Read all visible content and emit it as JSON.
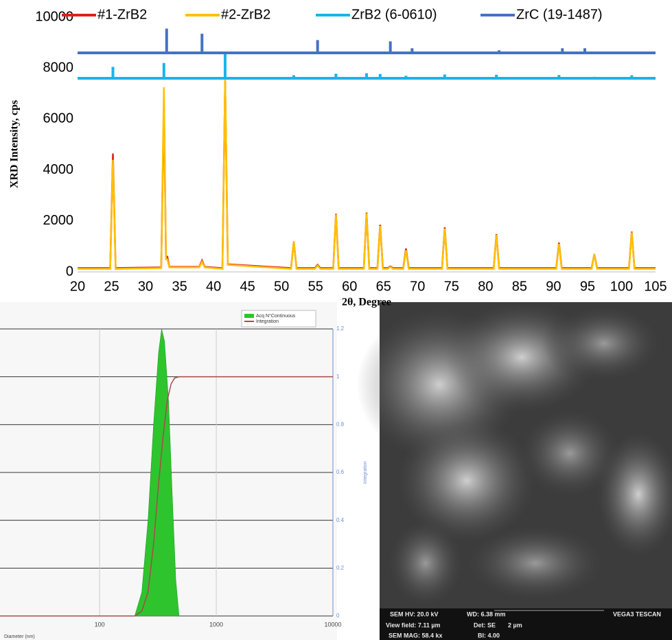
{
  "chart_data": [
    {
      "type": "line",
      "xlabel": "2θ, Degree",
      "ylabel": "XRD Intensity, cps",
      "xlim": [
        20,
        105
      ],
      "xticks": [
        20,
        25,
        30,
        35,
        40,
        45,
        50,
        55,
        60,
        65,
        70,
        75,
        80,
        85,
        90,
        95,
        100,
        105
      ],
      "ylim": [
        0,
        10000
      ],
      "yticks": [
        0,
        2000,
        4000,
        6000,
        8000,
        10000
      ],
      "grid": false,
      "series": [
        {
          "name": "#1-ZrB2",
          "color": "#e0201b",
          "type": "line",
          "x": [
            20,
            24.8,
            25.2,
            25.6,
            32.3,
            32.7,
            33.0,
            33.2,
            33.5,
            37.9,
            38.3,
            38.7,
            41.3,
            41.7,
            42.1,
            51.4,
            51.8,
            52.2,
            54.9,
            55.3,
            55.7,
            57.6,
            58.0,
            58.4,
            62.1,
            62.5,
            62.9,
            64.1,
            64.5,
            64.9,
            65.6,
            66.0,
            66.4,
            67.9,
            68.3,
            68.7,
            73.6,
            74.0,
            74.4,
            81.2,
            81.6,
            82.0,
            90.4,
            90.8,
            91.2,
            95.6,
            96.0,
            96.4,
            101.1,
            101.5,
            101.9,
            105
          ],
          "values": [
            150,
            150,
            4650,
            150,
            180,
            6700,
            600,
            600,
            200,
            200,
            450,
            200,
            150,
            7500,
            300,
            150,
            1200,
            150,
            150,
            280,
            150,
            150,
            2280,
            150,
            150,
            2330,
            150,
            150,
            1850,
            150,
            150,
            220,
            150,
            150,
            920,
            150,
            150,
            1750,
            150,
            150,
            1480,
            150,
            150,
            1150,
            150,
            150,
            700,
            150,
            150,
            1580,
            150,
            150
          ]
        },
        {
          "name": "#2-ZrB2",
          "color": "#ffc000",
          "type": "line",
          "x": [
            20,
            24.8,
            25.2,
            25.6,
            32.3,
            32.7,
            33.0,
            33.2,
            33.5,
            37.9,
            38.3,
            38.7,
            41.3,
            41.7,
            42.1,
            51.4,
            51.8,
            52.2,
            54.9,
            55.3,
            55.7,
            57.6,
            58.0,
            58.4,
            62.1,
            62.5,
            62.9,
            64.1,
            64.5,
            64.9,
            65.6,
            66.0,
            66.4,
            67.9,
            68.3,
            68.7,
            73.6,
            74.0,
            74.4,
            81.2,
            81.6,
            82.0,
            90.4,
            90.8,
            91.2,
            95.6,
            96.0,
            96.4,
            101.1,
            101.5,
            101.9,
            105
          ],
          "values": [
            120,
            120,
            4400,
            120,
            150,
            7250,
            500,
            500,
            180,
            180,
            400,
            180,
            120,
            7550,
            280,
            120,
            1200,
            120,
            120,
            250,
            120,
            120,
            2250,
            120,
            120,
            2300,
            120,
            120,
            1800,
            120,
            120,
            200,
            120,
            120,
            850,
            120,
            120,
            1700,
            120,
            120,
            1450,
            120,
            120,
            1100,
            120,
            120,
            700,
            120,
            120,
            1550,
            120,
            120
          ]
        },
        {
          "name": "ZrB2 (6-0610)",
          "color": "#19b4ea",
          "type": "stick",
          "base": 7600,
          "x": [
            25.2,
            32.7,
            41.7,
            51.8,
            58.0,
            62.5,
            64.5,
            68.3,
            74.0,
            81.6,
            90.8,
            96.0,
            101.5
          ],
          "values": [
            8050,
            8200,
            8550,
            7720,
            7780,
            7800,
            7770,
            7700,
            7750,
            7740,
            7730,
            7660,
            7720
          ]
        },
        {
          "name": "ZrC (19-1487)",
          "color": "#4472c4",
          "type": "stick",
          "base": 8600,
          "x": [
            33.1,
            38.3,
            55.3,
            66.0,
            69.2,
            82.0,
            91.3,
            94.6
          ],
          "values": [
            9550,
            9350,
            9100,
            9050,
            8780,
            8700,
            8780,
            8780
          ]
        }
      ]
    },
    {
      "type": "area",
      "xlabel": "Diameter (nm)",
      "y2label": "Integration",
      "log_x": true,
      "xlim": [
        14,
        10000
      ],
      "xticks": [
        100,
        1000,
        10000
      ],
      "y2lim": [
        0,
        1.2
      ],
      "y2ticks": [
        0,
        0.2,
        0.4,
        0.6,
        0.8,
        1,
        1.2
      ],
      "grid": true,
      "series": [
        {
          "name": "Acq N°Continuous",
          "color": "#2ec42e",
          "type": "area",
          "axis": "y2",
          "x": [
            200,
            230,
            260,
            290,
            320,
            340,
            360,
            390,
            420,
            450,
            480
          ],
          "values": [
            0,
            0.1,
            0.4,
            0.8,
            1.1,
            1.2,
            1.15,
            0.9,
            0.5,
            0.15,
            0
          ]
        },
        {
          "name": "Integration",
          "color": "#a84b45",
          "type": "line",
          "axis": "y2",
          "x": [
            14,
            200,
            230,
            260,
            290,
            320,
            350,
            380,
            410,
            440,
            480,
            10000
          ],
          "values": [
            0,
            0,
            0.02,
            0.1,
            0.3,
            0.55,
            0.75,
            0.9,
            0.97,
            0.995,
            1,
            1
          ]
        }
      ]
    }
  ],
  "sem_image": {
    "hv": "SEM HV: 20.0 kV",
    "wd": "WD: 6.38 mm",
    "brand": "VEGA3 TESCAN",
    "view_field": "View field: 7.11 µm",
    "det": "Det: SE",
    "scale": "2 µm",
    "mag": "SEM MAG: 58.4 kx",
    "bi": "BI: 4.00"
  }
}
